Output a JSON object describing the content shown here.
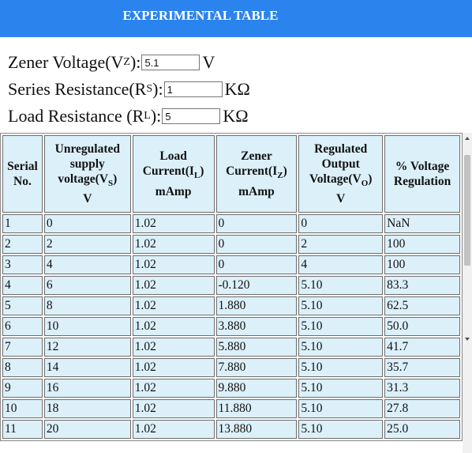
{
  "header": {
    "title": "EXPERIMENTAL TABLE",
    "color": "#2b83ee"
  },
  "params": {
    "zener": {
      "label": "Zener Voltage(V",
      "sub": "Z",
      "tail": "):",
      "value": "5.1",
      "unit": "V"
    },
    "series": {
      "label": "Series Resistance(R",
      "sub": "S",
      "tail": "):",
      "value": "1",
      "unit": "KΩ"
    },
    "load": {
      "label": "Load Resistance (R",
      "sub": "L",
      "tail": "):",
      "value": "5",
      "unit": "KΩ"
    }
  },
  "table": {
    "rows": [
      [
        "1",
        "0",
        "1.02",
        "0",
        "0",
        "NaN"
      ],
      [
        "2",
        "2",
        "1.02",
        "0",
        "2",
        "100"
      ],
      [
        "3",
        "4",
        "1.02",
        "0",
        "4",
        "100"
      ],
      [
        "4",
        "6",
        "1.02",
        "-0.120",
        "5.10",
        "83.3"
      ],
      [
        "5",
        "8",
        "1.02",
        "1.880",
        "5.10",
        "62.5"
      ],
      [
        "6",
        "10",
        "1.02",
        "3.880",
        "5.10",
        "50.0"
      ],
      [
        "7",
        "12",
        "1.02",
        "5.880",
        "5.10",
        "41.7"
      ],
      [
        "8",
        "14",
        "1.02",
        "7.880",
        "5.10",
        "35.7"
      ],
      [
        "9",
        "16",
        "1.02",
        "9.880",
        "5.10",
        "31.3"
      ],
      [
        "10",
        "18",
        "1.02",
        "11.880",
        "5.10",
        "27.8"
      ],
      [
        "11",
        "20",
        "1.02",
        "13.880",
        "5.10",
        "25.0"
      ]
    ]
  },
  "headers": {
    "serial": {
      "l1": "Serial",
      "l2": "No."
    },
    "unreg": {
      "l1": "Unregulated",
      "l2": "supply",
      "l3a": "voltage(V",
      "l3sub": "S",
      "l3b": ")",
      "l4": "V"
    },
    "load_current": {
      "l1": "Load",
      "l2a": "Current(I",
      "l2sub": "L",
      "l2b": ")",
      "l3": "mAmp"
    },
    "zener_current": {
      "l1": "Zener",
      "l2a": "Current(I",
      "l2sub": "Z",
      "l2b": ")",
      "l3": "mAmp"
    },
    "reg_out": {
      "l1": "Regulated",
      "l2": "Output",
      "l3a": "Voltage(V",
      "l3sub": "O",
      "l3b": ")",
      "l4": "V"
    },
    "pct": {
      "l1": "% Voltage",
      "l2": "Regulation"
    }
  }
}
